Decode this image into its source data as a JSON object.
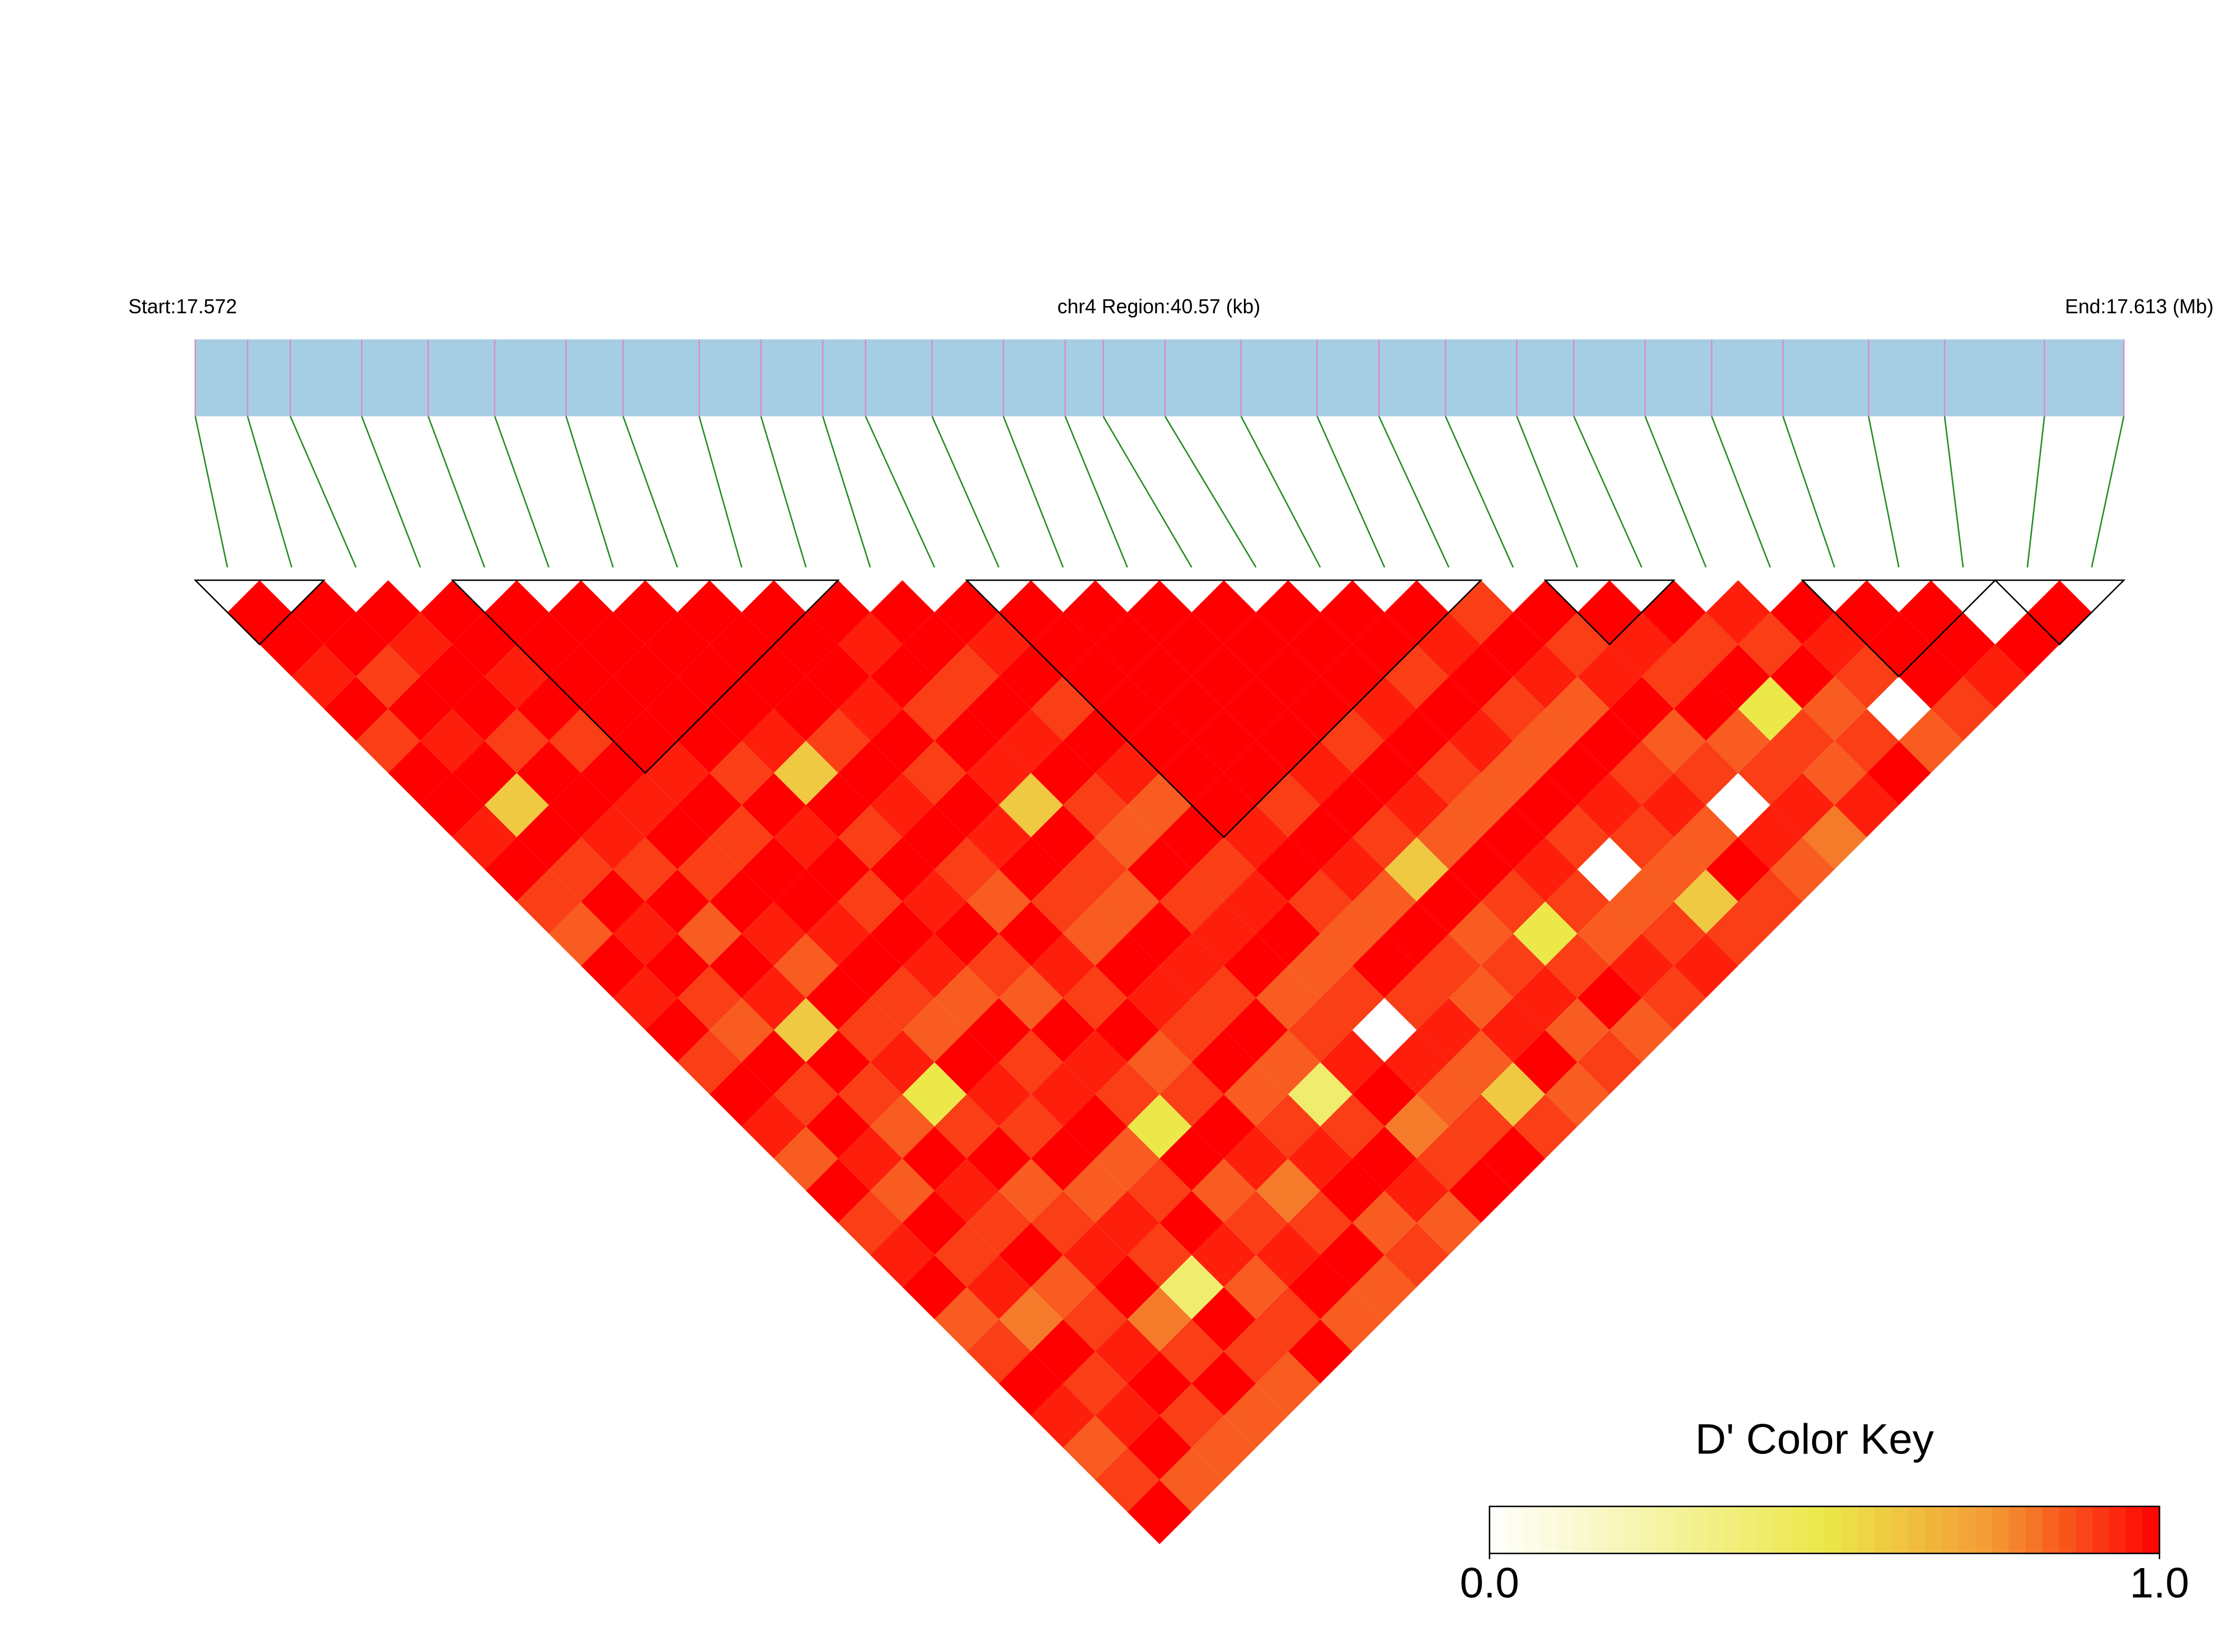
{
  "chart_data": {
    "type": "ld_heatmap",
    "start_label": "Start:17.572",
    "title": "chr4 Region:40.57 (kb)",
    "end_label": "End:17.613 (Mb)",
    "xlim": [
      0,
      40.57
    ],
    "positions_kb": [
      0,
      1.1,
      2.0,
      3.5,
      4.9,
      6.3,
      7.8,
      9.0,
      10.6,
      11.9,
      13.2,
      14.1,
      15.5,
      17.0,
      18.3,
      19.1,
      20.4,
      22.0,
      23.6,
      24.9,
      26.3,
      27.8,
      29.0,
      30.5,
      31.9,
      33.4,
      35.2,
      36.8,
      38.9,
      40.57
    ],
    "ld_matrix": [
      [
        1,
        1,
        0.95,
        1,
        0.9,
        1,
        1,
        0.95,
        1,
        0.9,
        0.85,
        1,
        0.95,
        1,
        0.9,
        1,
        0.95,
        0.85,
        1,
        0.9,
        0.95,
        1,
        0.85,
        0.9,
        1,
        0.95,
        0.85,
        0.9,
        1
      ],
      [
        1,
        1,
        0.9,
        1,
        0.95,
        1,
        0.6,
        1,
        0.9,
        1,
        0.95,
        1,
        0.9,
        0.85,
        1,
        0.9,
        1,
        0.95,
        0.85,
        1,
        0.9,
        0.95,
        0.8,
        1,
        0.9,
        0.95,
        1,
        0.85
      ],
      [
        1,
        0.95,
        1,
        1,
        0.9,
        1,
        1,
        0.95,
        0.9,
        1,
        0.85,
        1,
        0.95,
        0.6,
        1,
        0.9,
        0.85,
        1,
        0.95,
        0.9,
        1,
        0.85,
        0.9,
        0.95,
        1,
        0.9,
        0.85
      ],
      [
        1,
        1,
        0.95,
        1,
        0.9,
        1,
        0.95,
        1,
        0.9,
        1,
        0.95,
        0.85,
        1,
        0.9,
        0.95,
        0.5,
        0.9,
        1,
        0.85,
        0.9,
        0.95,
        1,
        0.8,
        0.9,
        1,
        0.85
      ],
      [
        1,
        1,
        1,
        1,
        1,
        0.95,
        1,
        0.9,
        1,
        1,
        0.95,
        1,
        0.9,
        0.85,
        1,
        0.95,
        0.9,
        1,
        0.85,
        0.95,
        0.9,
        0.4,
        1,
        0.9,
        0.85
      ],
      [
        1,
        1,
        1,
        1,
        1,
        0.9,
        1,
        0.95,
        1,
        0.9,
        1,
        0.95,
        0.85,
        1,
        0.9,
        0.95,
        1,
        0.85,
        0.9,
        1,
        0.95,
        0.85,
        0.9,
        1
      ],
      [
        1,
        1,
        1,
        1,
        0.95,
        0.6,
        1,
        0.9,
        1,
        0.95,
        1,
        0.9,
        0.85,
        1,
        0.95,
        0.9,
        0.5,
        1,
        0.85,
        0.9,
        0.95,
        1,
        0.85
      ],
      [
        1,
        1,
        1,
        1,
        0.9,
        1,
        0.95,
        1,
        0.9,
        0.85,
        1,
        0.95,
        0.9,
        1,
        0.85,
        0.9,
        1,
        0.95,
        0.8,
        0.9,
        1,
        0.85
      ],
      [
        1,
        1,
        1,
        0.95,
        1,
        0.9,
        1,
        0.95,
        1,
        0.9,
        0.85,
        1,
        0.95,
        0.9,
        1,
        0.85,
        0.9,
        0.95,
        1,
        0.85,
        0.9
      ],
      [
        1,
        0.95,
        1,
        0.9,
        1,
        0.95,
        0.6,
        1,
        0.9,
        0.85,
        1,
        0.95,
        0.9,
        1,
        0.85,
        0.4,
        0.9,
        1,
        0.95,
        0.85
      ],
      [
        1,
        1,
        0.9,
        1,
        0.95,
        1,
        0.9,
        0.85,
        1,
        0.9,
        0.95,
        1,
        0.85,
        0.9,
        0.95,
        1,
        0.8,
        0.9,
        1
      ],
      [
        1,
        0.95,
        1,
        0.9,
        1,
        0.95,
        0.85,
        1,
        0.9,
        0.95,
        1,
        0.85,
        0.9,
        0,
        0.95,
        0.85,
        0.9,
        1
      ],
      [
        1,
        1,
        1,
        1,
        1,
        1,
        1,
        0.95,
        1,
        0.9,
        0.85,
        1,
        0.9,
        0.95,
        0.85,
        0.6,
        0.9
      ],
      [
        1,
        1,
        1,
        1,
        1,
        1,
        0.9,
        1,
        0.95,
        0.85,
        1,
        0.9,
        0.85,
        0.95,
        1,
        0.85
      ],
      [
        1,
        1,
        1,
        1,
        1,
        0.95,
        1,
        0.9,
        0.6,
        1,
        0.85,
        0.9,
        0.95,
        0.85,
        0.9
      ],
      [
        1,
        1,
        1,
        1,
        0.9,
        1,
        0.95,
        0.85,
        1,
        0.9,
        0.5,
        0.9,
        1,
        0.85
      ],
      [
        1,
        1,
        1,
        0.95,
        1,
        0.9,
        0.85,
        1,
        0.95,
        0.9,
        0.85,
        0.95,
        0.9
      ],
      [
        1,
        1,
        0.9,
        1,
        0.95,
        0.85,
        1,
        0.9,
        0,
        0.85,
        0.9,
        0.95
      ],
      [
        1,
        0.95,
        1,
        0.9,
        0.85,
        1,
        0.95,
        0.9,
        0.85,
        0.6,
        0.9
      ],
      [
        0.9,
        1,
        0.95,
        0.85,
        1,
        0.9,
        0.95,
        0.85,
        1,
        0.9
      ],
      [
        1,
        0.9,
        0.95,
        1,
        0.85,
        0.9,
        0,
        0.95,
        0.85
      ],
      [
        1,
        0.95,
        0.9,
        1,
        0.85,
        0.9,
        0.95,
        0.8
      ],
      [
        1,
        0.9,
        1,
        0.5,
        0.9,
        0.85,
        0.95
      ],
      [
        0.95,
        0.9,
        1,
        0.85,
        0.9,
        1
      ],
      [
        1,
        0.95,
        0.9,
        0,
        0.85
      ],
      [
        1,
        1,
        1,
        0.9
      ],
      [
        1,
        1,
        0.95
      ],
      [
        0,
        1
      ],
      [
        1
      ]
    ],
    "blocks": [
      [
        0,
        1
      ],
      [
        4,
        9
      ],
      [
        12,
        19
      ],
      [
        21,
        22
      ],
      [
        25,
        27
      ],
      [
        28,
        29
      ]
    ],
    "colorbar": {
      "title": "D' Color Key",
      "lim": [
        0,
        1
      ],
      "ticks": [
        {
          "value": 0,
          "label": "0.0"
        },
        {
          "value": 1,
          "label": "1.0"
        }
      ],
      "color_stops": [
        0,
        0.5,
        0.75,
        1
      ],
      "colors": [
        "#ffffff",
        "#ece84a",
        "#f39a35",
        "#ff0000"
      ]
    },
    "track_color": "#a6cee3",
    "snp_line_color": "#d98ccc",
    "connector_color": "#228b22",
    "block_outline_color": "#000000"
  }
}
